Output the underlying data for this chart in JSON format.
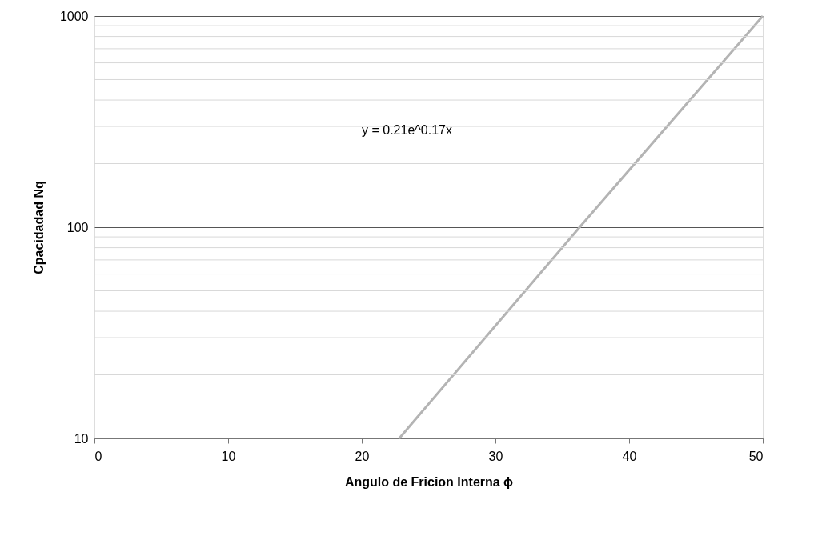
{
  "chart_data": {
    "type": "line",
    "xlabel": "Angulo de Fricion Interna ϕ",
    "ylabel": "Cpacidadad Nq",
    "series": [
      {
        "color": "#b4b4b4",
        "x": [
          22.8,
          36.3,
          50
        ],
        "values": [
          10,
          100,
          1000
        ]
      }
    ],
    "xlim": [
      0,
      50
    ],
    "xticks": [
      0,
      10,
      20,
      30,
      40,
      50
    ],
    "ylim": [
      10,
      1000
    ],
    "yticks": [
      10,
      100,
      1000
    ],
    "log": "y",
    "grid": "y",
    "marker": "none",
    "line_style": "solid",
    "annotations": [
      "y = 0.21e^0.17x"
    ]
  }
}
